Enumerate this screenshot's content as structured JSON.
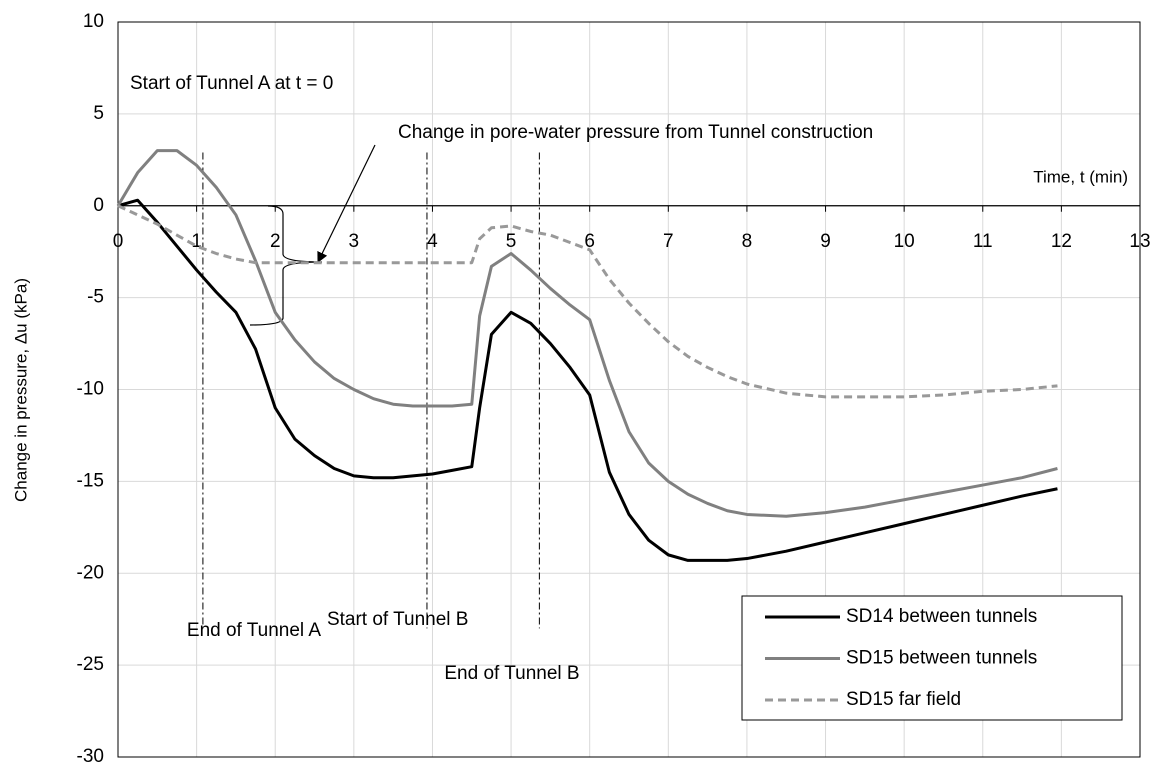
{
  "chart_data": {
    "type": "line",
    "ylabel": "Change in pressure, Δu (kPa)",
    "xlabel": "Time, t (min)",
    "annotations": [
      "Start of Tunnel A at t = 0",
      "Change in pore-water pressure from Tunnel construction"
    ],
    "markers": [
      {
        "label": "End of Tunnel A",
        "x": 1.08
      },
      {
        "label": "Start of Tunnel B",
        "x": 3.93
      },
      {
        "label": "End of Tunnel B",
        "x": 5.36
      }
    ],
    "x": [
      0,
      0.25,
      0.5,
      0.75,
      1,
      1.25,
      1.5,
      1.75,
      2,
      2.25,
      2.5,
      2.75,
      3,
      3.25,
      3.5,
      3.75,
      4,
      4.25,
      4.5,
      4.6,
      4.75,
      5,
      5.25,
      5.5,
      5.75,
      6,
      6.25,
      6.5,
      6.75,
      7,
      7.25,
      7.5,
      7.75,
      8,
      8.5,
      9,
      9.5,
      10,
      10.5,
      11,
      11.5,
      11.95
    ],
    "series": [
      {
        "name": "SD14 between tunnels",
        "color": "#000000",
        "dash": "solid",
        "values": [
          0,
          0.3,
          -0.9,
          -2.2,
          -3.5,
          -4.7,
          -5.8,
          -7.8,
          -11,
          -12.7,
          -13.6,
          -14.3,
          -14.7,
          -14.8,
          -14.8,
          -14.7,
          -14.6,
          -14.4,
          -14.2,
          -11,
          -7,
          -5.8,
          -6.4,
          -7.5,
          -8.8,
          -10.3,
          -14.5,
          -16.8,
          -18.2,
          -19,
          -19.3,
          -19.3,
          -19.3,
          -19.2,
          -18.8,
          -18.3,
          -17.8,
          -17.3,
          -16.8,
          -16.3,
          -15.8,
          -15.4
        ]
      },
      {
        "name": "SD15 between tunnels",
        "color": "#808080",
        "dash": "solid",
        "values": [
          0,
          1.8,
          3,
          3,
          2.2,
          1,
          -0.5,
          -3,
          -5.8,
          -7.3,
          -8.5,
          -9.4,
          -10,
          -10.5,
          -10.8,
          -10.9,
          -10.9,
          -10.9,
          -10.8,
          -6,
          -3.3,
          -2.6,
          -3.5,
          -4.5,
          -5.4,
          -6.2,
          -9.5,
          -12.3,
          -14,
          -15,
          -15.7,
          -16.2,
          -16.6,
          -16.8,
          -16.9,
          -16.7,
          -16.4,
          -16,
          -15.6,
          -15.2,
          -14.8,
          -14.3
        ]
      },
      {
        "name": "SD15 far field",
        "color": "#999999",
        "dash": "dashed",
        "values": [
          0,
          -0.5,
          -1,
          -1.6,
          -2.2,
          -2.6,
          -2.9,
          -3.1,
          -3.1,
          -3.1,
          -3.1,
          -3.1,
          -3.1,
          -3.1,
          -3.1,
          -3.1,
          -3.1,
          -3.1,
          -3.1,
          -1.8,
          -1.2,
          -1.1,
          -1.4,
          -1.6,
          -2,
          -2.4,
          -4,
          -5.3,
          -6.4,
          -7.4,
          -8.2,
          -8.8,
          -9.3,
          -9.7,
          -10.2,
          -10.4,
          -10.4,
          -10.4,
          -10.3,
          -10.1,
          -10,
          -9.8
        ]
      }
    ],
    "xlim": [
      0,
      13
    ],
    "xticks": [
      0,
      1,
      2,
      3,
      4,
      5,
      6,
      7,
      8,
      9,
      10,
      11,
      12,
      13
    ],
    "ylim": [
      -30,
      10
    ],
    "yticks": [
      -30,
      -25,
      -20,
      -15,
      -10,
      -5,
      0,
      5,
      10
    ],
    "grid": true,
    "legend": "lower right"
  }
}
